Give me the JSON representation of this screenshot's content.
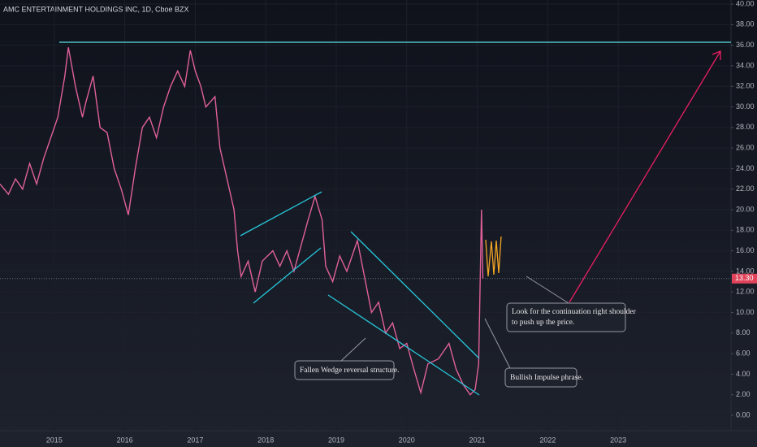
{
  "chart_data": {
    "type": "line",
    "title": "AMC ENTERTAINMENT HOLDINGS INC, 1D, Cboe BZX",
    "x": [
      2014.23,
      2014.35,
      2014.45,
      2014.55,
      2014.65,
      2014.75,
      2014.85,
      2014.95,
      2015.05,
      2015.15,
      2015.2,
      2015.3,
      2015.4,
      2015.45,
      2015.55,
      2015.65,
      2015.75,
      2015.85,
      2015.95,
      2016.05,
      2016.15,
      2016.25,
      2016.35,
      2016.45,
      2016.55,
      2016.65,
      2016.75,
      2016.85,
      2016.93,
      2017.0,
      2017.08,
      2017.15,
      2017.28,
      2017.35,
      2017.45,
      2017.55,
      2017.6,
      2017.65,
      2017.75,
      2017.85,
      2017.95,
      2018.1,
      2018.2,
      2018.3,
      2018.4,
      2018.5,
      2018.6,
      2018.7,
      2018.8,
      2018.85,
      2018.95,
      2019.05,
      2019.15,
      2019.3,
      2019.4,
      2019.5,
      2019.6,
      2019.7,
      2019.8,
      2019.9,
      2020.0,
      2020.1,
      2020.2,
      2020.3,
      2020.45,
      2020.6,
      2020.7,
      2020.8,
      2020.9,
      2020.97,
      2021.02,
      2021.06,
      2021.08
    ],
    "series": [
      {
        "color": "#e0609a",
        "values": [
          22.5,
          21.5,
          23,
          22,
          24.5,
          22.5,
          25,
          27,
          29,
          33,
          35.8,
          32,
          29,
          30.5,
          33,
          28,
          27.5,
          24,
          22,
          19.5,
          24,
          28,
          29,
          27,
          30,
          32,
          33.5,
          32,
          35.5,
          33.5,
          32,
          30,
          31,
          26,
          23,
          20,
          16,
          13.5,
          15,
          12,
          15,
          16,
          14.5,
          16,
          14,
          16.5,
          19,
          21.3,
          19,
          14.5,
          13,
          15.5,
          14,
          17,
          13.5,
          10,
          11,
          8,
          9,
          6.5,
          7,
          4.5,
          2.2,
          5,
          5.5,
          7,
          4.5,
          3,
          2,
          2.5,
          5,
          20,
          13.3
        ]
      }
    ],
    "xlim": [
      2014.23,
      2024.6
    ],
    "xticks": [
      2015,
      2016,
      2017,
      2018,
      2019,
      2020,
      2021,
      2022,
      2023
    ],
    "ylim": [
      -1.5,
      40.4
    ],
    "yticks": [
      {
        "value": 0,
        "label": "0.00"
      },
      {
        "value": 2,
        "label": "2.00"
      },
      {
        "value": 4,
        "label": "4.00"
      },
      {
        "value": 6,
        "label": "6.00"
      },
      {
        "value": 8,
        "label": "8.00"
      },
      {
        "value": 10,
        "label": "10.00"
      },
      {
        "value": 12,
        "label": "12.00"
      },
      {
        "value": 14,
        "label": "14.00"
      },
      {
        "value": 16,
        "label": "16.00"
      },
      {
        "value": 18,
        "label": "18.00"
      },
      {
        "value": 20,
        "label": "20.00"
      },
      {
        "value": 22,
        "label": "22.00"
      },
      {
        "value": 24,
        "label": "24.00"
      },
      {
        "value": 26,
        "label": "26.00"
      },
      {
        "value": 28,
        "label": "28.00"
      },
      {
        "value": 30,
        "label": "30.00"
      },
      {
        "value": 32,
        "label": "32.00"
      },
      {
        "value": 34,
        "label": "34.00"
      },
      {
        "value": 36,
        "label": "36.00"
      },
      {
        "value": 38,
        "label": "38.00"
      },
      {
        "value": 40,
        "label": "40.00"
      }
    ],
    "last_price": {
      "value": 13.3,
      "label": "13.30"
    },
    "annotations": [
      "Fallen Wedge reversal structure.",
      "Bullish Impulse phrase.",
      [
        "Look for the continuation right shoulder",
        "to push up the price."
      ]
    ]
  }
}
